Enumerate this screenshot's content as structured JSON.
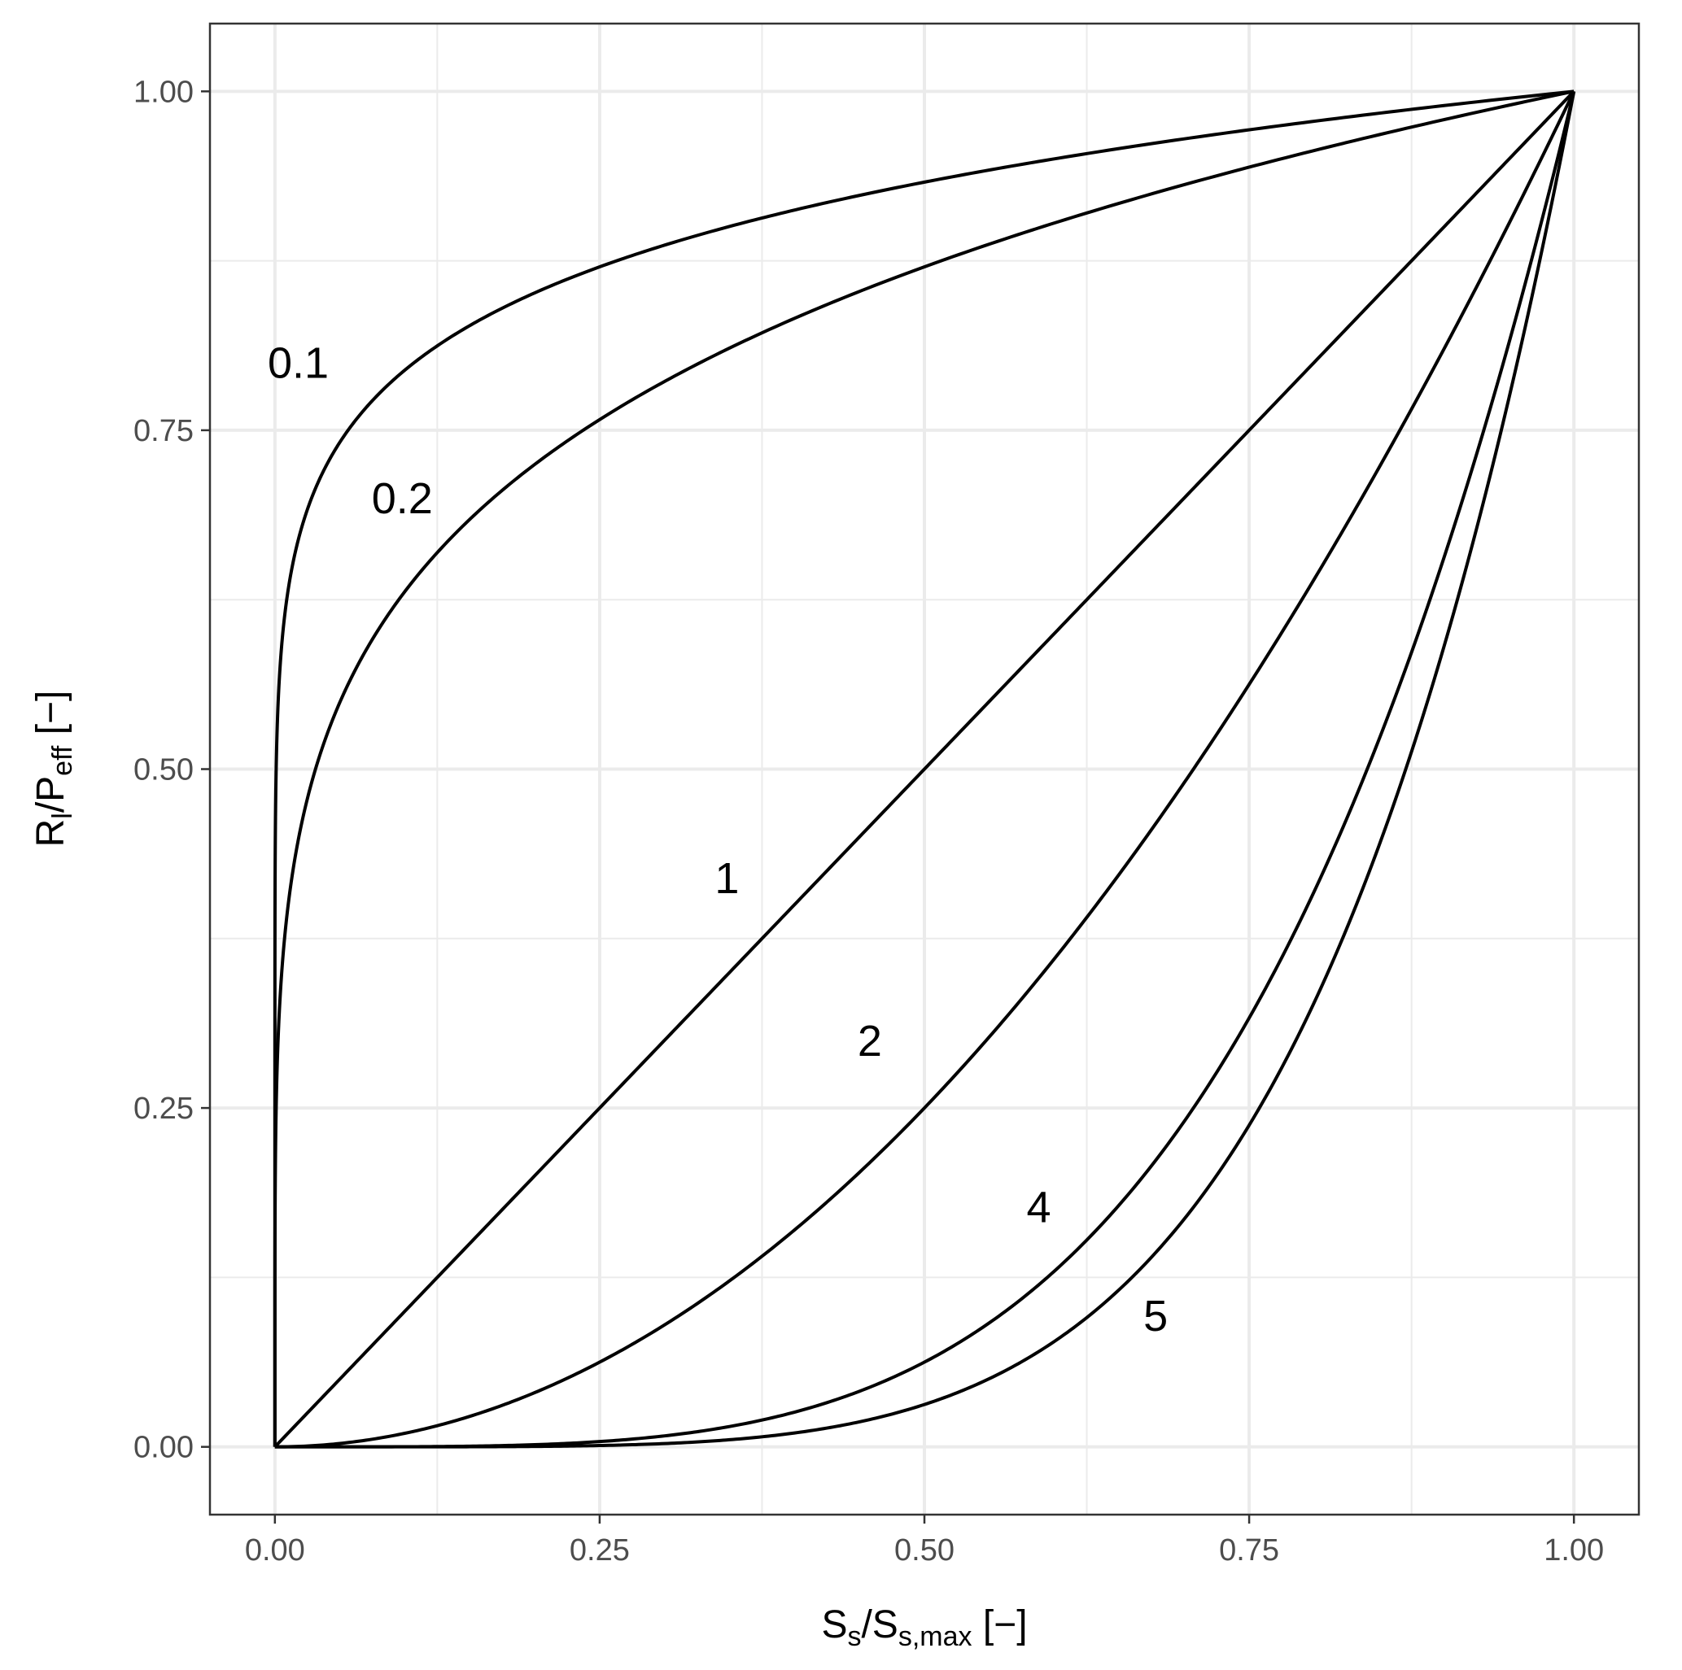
{
  "chart_data": {
    "type": "line",
    "title": "",
    "xlabel": {
      "main": "S",
      "main_sub": "s",
      "denom": "S",
      "denom_sub": "s,max",
      "unit": " [−]"
    },
    "ylabel": {
      "main": "R",
      "main_sub": "l",
      "denom": "P",
      "denom_sub": "eff",
      "unit": " [−]"
    },
    "xlim": [
      -0.05,
      1.05
    ],
    "ylim": [
      -0.05,
      1.05
    ],
    "x_ticks": [
      0,
      0.25,
      0.5,
      0.75,
      1
    ],
    "x_tick_labels": [
      "0.00",
      "0.25",
      "0.50",
      "0.75",
      "1.00"
    ],
    "y_ticks": [
      0,
      0.25,
      0.5,
      0.75,
      1
    ],
    "y_tick_labels": [
      "0.00",
      "0.25",
      "0.50",
      "0.75",
      "1.00"
    ],
    "x_minor_ticks": [
      0.125,
      0.375,
      0.625,
      0.875
    ],
    "y_minor_ticks": [
      0.125,
      0.375,
      0.625,
      0.875
    ],
    "grid": true,
    "legend": "none",
    "line_color": "#000000",
    "panel_background": "#ffffff",
    "grid_color": "#ebebeb",
    "function": "y = x^beta",
    "series": [
      {
        "beta": 0.1,
        "label": "0.1",
        "label_x": 0.018,
        "label_y": 0.8
      },
      {
        "beta": 0.2,
        "label": "0.2",
        "label_x": 0.098,
        "label_y": 0.7
      },
      {
        "beta": 1,
        "label": "1",
        "label_x": 0.348,
        "label_y": 0.42
      },
      {
        "beta": 2,
        "label": "2",
        "label_x": 0.458,
        "label_y": 0.3
      },
      {
        "beta": 4,
        "label": "4",
        "label_x": 0.588,
        "label_y": 0.177
      },
      {
        "beta": 5,
        "label": "5",
        "label_x": 0.678,
        "label_y": 0.097
      }
    ]
  }
}
